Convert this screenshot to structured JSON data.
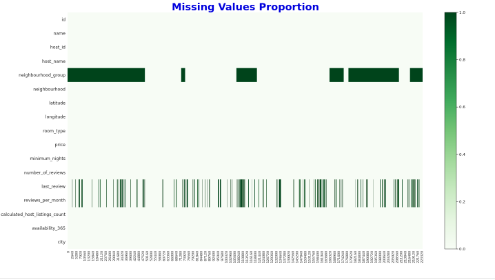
{
  "chart_data": {
    "type": "heatmap",
    "title": "Missing Values Proportion",
    "title_color": "#0000dd",
    "colormap": "Greens",
    "color_min": "#f7fcf5",
    "color_max": "#00441b",
    "rows": [
      "id",
      "name",
      "host_id",
      "host_name",
      "neighbourhood_group",
      "neighbourhood",
      "latitude",
      "longitude",
      "room_type",
      "price",
      "minimum_nights",
      "number_of_reviews",
      "last_review",
      "reviews_per_month",
      "calculated_host_listings_count",
      "availability_365",
      "city"
    ],
    "x_range": [
      0,
      225000
    ],
    "x_ticks_visible": [
      "0",
      "2640",
      "5280",
      "7920",
      "10560",
      "13200",
      "15840",
      "18480",
      "21120",
      "23760",
      "26400",
      "29040",
      "31680",
      "34320",
      "36960",
      "39600",
      "42240",
      "44880",
      "47520",
      "50160",
      "52800",
      "55440",
      "58080",
      "60720",
      "63360",
      "66000",
      "68640",
      "71280",
      "73920",
      "76560",
      "79200",
      "81840",
      "84480",
      "87120",
      "89760",
      "92400",
      "95040",
      "97680",
      "100320",
      "102960",
      "105600",
      "108240",
      "110880",
      "113520",
      "116160",
      "118800",
      "121440",
      "124080",
      "126720",
      "129360",
      "132000",
      "134640",
      "137280",
      "139920",
      "142560",
      "145200",
      "147840",
      "150480",
      "153120",
      "155760",
      "158400",
      "161040",
      "163680",
      "166320",
      "168960",
      "171600",
      "174240",
      "176880",
      "179520",
      "182160",
      "184800",
      "187440",
      "190080",
      "192720",
      "195360",
      "198000",
      "200640",
      "203280",
      "205920",
      "208560",
      "211200",
      "213840",
      "216480",
      "219120",
      "221760",
      "223320"
    ],
    "missing_ranges": {
      "neighbourhood_group": [
        [
          0,
          49000
        ],
        [
          72000,
          74500
        ],
        [
          107000,
          120000
        ],
        [
          166000,
          175000
        ],
        [
          178000,
          210000
        ],
        [
          217000,
          231000
        ]
      ],
      "last_review": "scattered",
      "reviews_per_month": "scattered"
    },
    "colorbar": {
      "range": [
        0,
        1
      ],
      "ticks": [
        "0.0",
        "0.2",
        "0.4",
        "0.6",
        "0.8",
        "1.0"
      ]
    }
  }
}
